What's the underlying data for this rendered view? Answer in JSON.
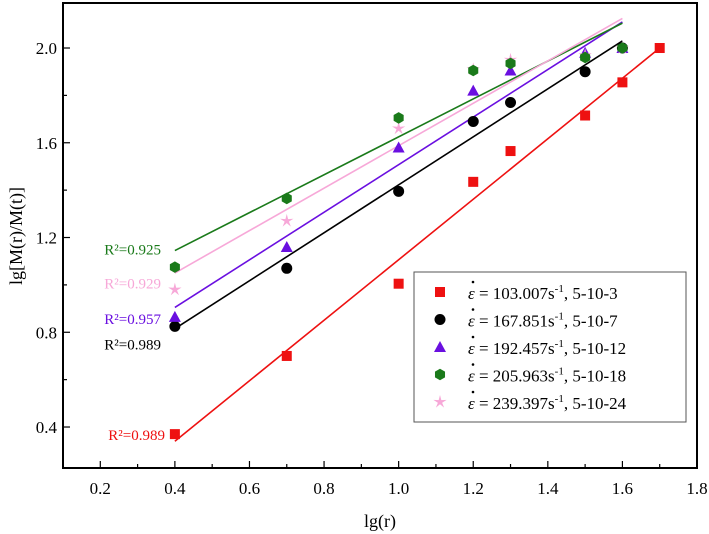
{
  "chart_data": {
    "type": "scatter",
    "title": "",
    "xlabel": "lg(r)",
    "ylabel": "lg[M(r)/M(t)]",
    "xlim": [
      0.1,
      1.8
    ],
    "ylim": [
      0.227,
      2.19
    ],
    "xticks": [
      0.2,
      0.4,
      0.6,
      0.8,
      1.0,
      1.2,
      1.4,
      1.6,
      1.8
    ],
    "xtick_labels": [
      "0.2",
      "0.4",
      "0.6",
      "0.8",
      "1.0",
      "1.2",
      "1.4",
      "1.6",
      "1.8"
    ],
    "yticks": [
      0.4,
      0.8,
      1.2,
      1.6,
      2.0
    ],
    "ytick_labels": [
      "0.4",
      "0.8",
      "1.2",
      "1.6",
      "2.0"
    ],
    "grid": false,
    "legend_position": "bottom-right",
    "series": [
      {
        "name": "103.007s-1, 5-10-3",
        "rate": "103.007",
        "specimen": "5-10-3",
        "color": "#ee1111",
        "marker": "square",
        "x": [
          0.4,
          0.7,
          1.0,
          1.2,
          1.3,
          1.5,
          1.6,
          1.7
        ],
        "y": [
          0.37,
          0.7,
          1.005,
          1.435,
          1.565,
          1.715,
          1.855,
          2.0
        ],
        "fit": [
          [
            0.4,
            0.34
          ],
          [
            1.7,
            2.0
          ]
        ],
        "r2": "R²=0.989"
      },
      {
        "name": "167.851s-1, 5-10-7",
        "rate": "167.851",
        "specimen": "5-10-7",
        "color": "#000000",
        "marker": "circle",
        "x": [
          0.4,
          0.7,
          1.0,
          1.2,
          1.3,
          1.5,
          1.6
        ],
        "y": [
          0.825,
          1.07,
          1.395,
          1.69,
          1.77,
          1.9,
          2.0
        ],
        "fit": [
          [
            0.4,
            0.815
          ],
          [
            1.6,
            2.03
          ]
        ],
        "r2": "R²=0.989"
      },
      {
        "name": "192.457s-1, 5-10-12",
        "rate": "192.457",
        "specimen": "5-10-12",
        "color": "#6a0fe0",
        "marker": "triangle",
        "x": [
          0.4,
          0.7,
          1.0,
          1.2,
          1.3,
          1.5,
          1.6
        ],
        "y": [
          0.865,
          1.16,
          1.58,
          1.82,
          1.905,
          1.98,
          2.0
        ],
        "fit": [
          [
            0.4,
            0.905
          ],
          [
            1.6,
            2.11
          ]
        ],
        "r2": "R²=0.957"
      },
      {
        "name": "205.963s-1, 5-10-18",
        "rate": "205.963",
        "specimen": "5-10-18",
        "color": "#1a7a1a",
        "marker": "hexagon",
        "x": [
          0.4,
          0.7,
          1.0,
          1.2,
          1.3,
          1.5,
          1.6
        ],
        "y": [
          1.075,
          1.365,
          1.705,
          1.905,
          1.935,
          1.96,
          2.0
        ],
        "fit": [
          [
            0.4,
            1.145
          ],
          [
            1.6,
            2.105
          ]
        ],
        "r2": "R²=0.925"
      },
      {
        "name": "239.397s-1, 5-10-24",
        "rate": "239.397",
        "specimen": "5-10-24",
        "color": "#f7a8d8",
        "marker": "star",
        "x": [
          0.4,
          0.7,
          1.0,
          1.2,
          1.3,
          1.5,
          1.6
        ],
        "y": [
          0.98,
          1.27,
          1.66,
          1.91,
          1.95,
          1.97,
          2.0
        ],
        "fit": [
          [
            0.4,
            1.05
          ],
          [
            1.6,
            2.125
          ]
        ],
        "r2": "R²=0.929"
      }
    ]
  }
}
